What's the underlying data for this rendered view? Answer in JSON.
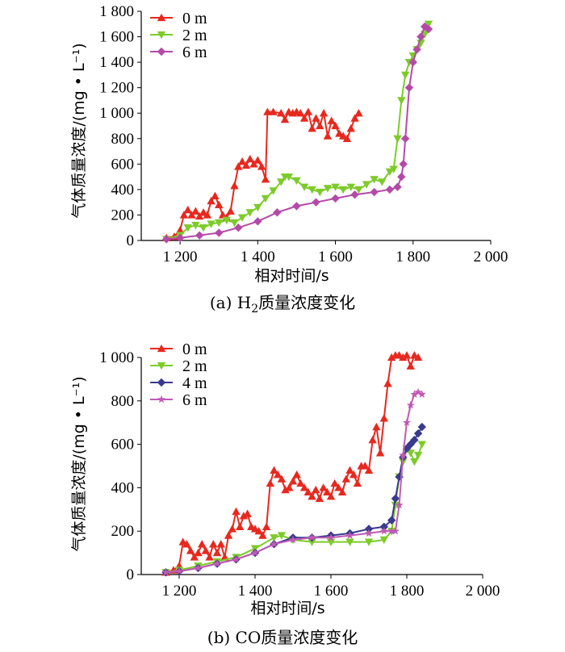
{
  "chart_data": [
    {
      "type": "line",
      "title": "",
      "caption": {
        "prefix": "(a)  H",
        "sub": "2",
        "suffix": "质量浓度变化"
      },
      "xlabel": "相对时间/s",
      "ylabel": "气体质量浓度/(mg • L⁻¹)",
      "xlim": [
        1100,
        2000
      ],
      "ylim": [
        0,
        1800
      ],
      "xticks": [
        1200,
        1400,
        1600,
        1800,
        2000
      ],
      "xtick_labels": [
        "1 200",
        "1 400",
        "1 600",
        "1 800",
        "2 000"
      ],
      "yticks": [
        0,
        200,
        400,
        600,
        800,
        1000,
        1200,
        1400,
        1600,
        1800
      ],
      "ytick_labels": [
        "0",
        "200",
        "400",
        "600",
        "800",
        "1 000",
        "1 200",
        "1 400",
        "1 600",
        "1 800"
      ],
      "legend_position": "top-left",
      "series": [
        {
          "name": "0 m",
          "color": "#e8281e",
          "marker": "triangle-up",
          "x": [
            1165,
            1185,
            1200,
            1210,
            1220,
            1230,
            1240,
            1250,
            1260,
            1270,
            1280,
            1290,
            1300,
            1310,
            1320,
            1330,
            1340,
            1350,
            1360,
            1370,
            1380,
            1390,
            1400,
            1410,
            1420,
            1425,
            1440,
            1460,
            1470,
            1480,
            1490,
            1500,
            1510,
            1520,
            1530,
            1540,
            1550,
            1560,
            1570,
            1580,
            1590,
            1600,
            1610,
            1620,
            1630,
            1640,
            1650,
            1660
          ],
          "y": [
            20,
            30,
            80,
            200,
            240,
            200,
            230,
            190,
            220,
            200,
            310,
            350,
            280,
            200,
            180,
            230,
            430,
            580,
            620,
            590,
            640,
            600,
            630,
            580,
            480,
            1010,
            1010,
            1000,
            950,
            1010,
            1000,
            1010,
            1000,
            960,
            1010,
            880,
            960,
            900,
            1000,
            820,
            940,
            900,
            840,
            820,
            800,
            880,
            960,
            1000
          ]
        },
        {
          "name": "2 m",
          "color": "#7dcb2a",
          "marker": "triangle-down",
          "x": [
            1165,
            1200,
            1220,
            1240,
            1260,
            1280,
            1300,
            1320,
            1340,
            1360,
            1380,
            1400,
            1420,
            1440,
            1460,
            1470,
            1480,
            1500,
            1520,
            1540,
            1560,
            1580,
            1600,
            1620,
            1640,
            1660,
            1680,
            1700,
            1720,
            1740,
            1750,
            1760,
            1770,
            1780,
            1790,
            1800,
            1810,
            1820,
            1830,
            1840
          ],
          "y": [
            10,
            40,
            100,
            120,
            100,
            130,
            140,
            160,
            140,
            180,
            220,
            260,
            330,
            390,
            460,
            500,
            500,
            470,
            420,
            400,
            380,
            410,
            420,
            400,
            420,
            400,
            440,
            480,
            460,
            540,
            560,
            800,
            1100,
            1300,
            1400,
            1450,
            1500,
            1550,
            1620,
            1700
          ]
        },
        {
          "name": "6 m",
          "color": "#b34aa8",
          "marker": "diamond",
          "x": [
            1165,
            1200,
            1250,
            1300,
            1350,
            1400,
            1450,
            1500,
            1550,
            1600,
            1650,
            1700,
            1740,
            1760,
            1770,
            1775,
            1780,
            1790,
            1800,
            1810,
            1820,
            1830,
            1840
          ],
          "y": [
            10,
            20,
            40,
            60,
            100,
            150,
            220,
            270,
            300,
            330,
            360,
            380,
            400,
            420,
            500,
            600,
            800,
            1200,
            1400,
            1500,
            1600,
            1680,
            1660
          ]
        }
      ]
    },
    {
      "type": "line",
      "title": "",
      "caption": {
        "prefix": "(b)  CO质量浓度变化",
        "sub": "",
        "suffix": ""
      },
      "xlabel": "相对时间/s",
      "ylabel": "气体质量浓度/(mg • L⁻¹)",
      "xlim": [
        1100,
        2000
      ],
      "ylim": [
        0,
        1000
      ],
      "xticks": [
        1200,
        1400,
        1600,
        1800,
        2000
      ],
      "xtick_labels": [
        "1 200",
        "1 400",
        "1 600",
        "1 800",
        "2 000"
      ],
      "yticks": [
        0,
        200,
        400,
        600,
        800,
        1000
      ],
      "ytick_labels": [
        "0",
        "200",
        "400",
        "600",
        "800",
        "1 000"
      ],
      "legend_position": "top-left",
      "series": [
        {
          "name": "0 m",
          "color": "#e8281e",
          "marker": "triangle-up",
          "x": [
            1165,
            1185,
            1200,
            1210,
            1220,
            1230,
            1240,
            1250,
            1260,
            1270,
            1280,
            1290,
            1300,
            1310,
            1320,
            1330,
            1340,
            1350,
            1360,
            1370,
            1380,
            1390,
            1400,
            1410,
            1420,
            1430,
            1440,
            1450,
            1460,
            1470,
            1480,
            1490,
            1500,
            1510,
            1520,
            1530,
            1540,
            1550,
            1560,
            1570,
            1580,
            1590,
            1600,
            1610,
            1620,
            1630,
            1640,
            1650,
            1660,
            1670,
            1680,
            1690,
            1700,
            1710,
            1720,
            1730,
            1740,
            1750,
            1760,
            1770,
            1780,
            1790,
            1800,
            1810,
            1820,
            1830
          ],
          "y": [
            10,
            20,
            40,
            150,
            140,
            110,
            80,
            100,
            140,
            110,
            80,
            140,
            100,
            140,
            80,
            180,
            210,
            290,
            220,
            270,
            280,
            220,
            210,
            200,
            180,
            220,
            420,
            480,
            460,
            440,
            390,
            400,
            430,
            460,
            420,
            400,
            380,
            360,
            390,
            350,
            400,
            380,
            360,
            420,
            400,
            380,
            440,
            480,
            460,
            420,
            500,
            500,
            480,
            620,
            680,
            560,
            720,
            880,
            1000,
            1010,
            1010,
            1000,
            1010,
            960,
            1010,
            1000
          ]
        },
        {
          "name": "2 m",
          "color": "#7dcb2a",
          "marker": "triangle-down",
          "x": [
            1165,
            1200,
            1250,
            1300,
            1350,
            1400,
            1450,
            1470,
            1500,
            1550,
            1600,
            1650,
            1700,
            1740,
            1760,
            1770,
            1780,
            1790,
            1800,
            1810,
            1820,
            1830,
            1840
          ],
          "y": [
            10,
            20,
            40,
            60,
            80,
            120,
            170,
            180,
            160,
            150,
            150,
            150,
            150,
            160,
            200,
            320,
            450,
            520,
            580,
            560,
            520,
            550,
            600
          ]
        },
        {
          "name": "4 m",
          "color": "#3a3a8c",
          "marker": "diamond",
          "x": [
            1165,
            1200,
            1250,
            1300,
            1350,
            1400,
            1450,
            1500,
            1550,
            1600,
            1650,
            1700,
            1740,
            1760,
            1770,
            1780,
            1790,
            1800,
            1810,
            1820,
            1830,
            1840
          ],
          "y": [
            10,
            15,
            30,
            50,
            70,
            100,
            140,
            170,
            170,
            180,
            190,
            210,
            220,
            250,
            350,
            450,
            540,
            580,
            600,
            620,
            650,
            680
          ]
        },
        {
          "name": "6 m",
          "color": "#c05ab5",
          "marker": "star",
          "x": [
            1165,
            1200,
            1250,
            1300,
            1350,
            1400,
            1450,
            1500,
            1550,
            1600,
            1650,
            1700,
            1740,
            1760,
            1770,
            1780,
            1790,
            1800,
            1810,
            1820,
            1830,
            1840
          ],
          "y": [
            10,
            15,
            30,
            50,
            70,
            100,
            140,
            160,
            170,
            170,
            180,
            190,
            200,
            200,
            200,
            320,
            550,
            700,
            780,
            830,
            840,
            830
          ]
        }
      ]
    }
  ]
}
